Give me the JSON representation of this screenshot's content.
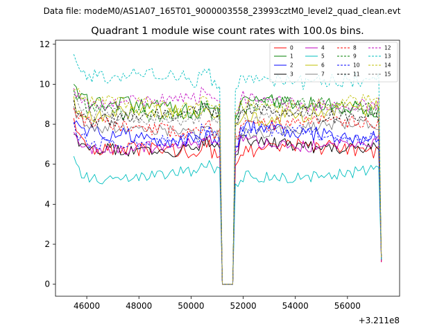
{
  "chart_data": {
    "type": "line",
    "suptitle": "Data file: modeM0/AS1A07_165T01_9000003558_23993cztM0_level2_quad_clean.evt",
    "title": "Quadrant 1 module wise count rates with 100.0s bins.",
    "xlabel": "",
    "ylabel": "",
    "x_offset_label": "+3.211e8",
    "xlim": [
      44800,
      58000
    ],
    "ylim": [
      -0.6,
      12.2
    ],
    "x_ticks": [
      46000,
      48000,
      50000,
      52000,
      54000,
      56000
    ],
    "x_tick_labels": [
      "46000",
      "48000",
      "50000",
      "52000",
      "54000",
      "56000"
    ],
    "y_ticks": [
      0,
      2,
      4,
      6,
      8,
      10,
      12
    ],
    "y_tick_labels": [
      "0",
      "2",
      "4",
      "6",
      "8",
      "10",
      "12"
    ],
    "grid": false,
    "legend_position": "upper right",
    "segments": [
      {
        "x_start": 45500,
        "x_end": 51100
      },
      {
        "x_start": 51200,
        "x_end": 51600
      },
      {
        "x_start": 51700,
        "x_end": 57300
      }
    ],
    "gap": {
      "x_start": 51200,
      "x_end": 51600,
      "value": 0.0
    },
    "end_value": 1.3,
    "series": [
      {
        "name": "0",
        "color": "#ff0000",
        "dashed": false,
        "start": 8.3,
        "level": 6.5,
        "amp": 0.4
      },
      {
        "name": "1",
        "color": "#008000",
        "dashed": false,
        "start": 10.0,
        "level": 8.8,
        "amp": 0.4
      },
      {
        "name": "2",
        "color": "#0000ff",
        "dashed": false,
        "start": 8.0,
        "level": 7.4,
        "amp": 0.4
      },
      {
        "name": "3",
        "color": "#000000",
        "dashed": false,
        "start": 7.5,
        "level": 6.9,
        "amp": 0.3
      },
      {
        "name": "4",
        "color": "#bf00bf",
        "dashed": false,
        "start": 7.6,
        "level": 7.0,
        "amp": 0.3
      },
      {
        "name": "5",
        "color": "#00bfbf",
        "dashed": false,
        "start": 6.4,
        "level": 5.4,
        "amp": 0.3
      },
      {
        "name": "6",
        "color": "#bfbf00",
        "dashed": false,
        "start": 9.4,
        "level": 8.4,
        "amp": 0.4
      },
      {
        "name": "7",
        "color": "#808080",
        "dashed": false,
        "start": 8.9,
        "level": 7.6,
        "amp": 0.3
      },
      {
        "name": "8",
        "color": "#ff0000",
        "dashed": true,
        "start": 8.8,
        "level": 7.8,
        "amp": 0.35
      },
      {
        "name": "9",
        "color": "#008000",
        "dashed": true,
        "start": 9.7,
        "level": 8.7,
        "amp": 0.35
      },
      {
        "name": "10",
        "color": "#0000ff",
        "dashed": true,
        "start": 8.1,
        "level": 7.3,
        "amp": 0.35
      },
      {
        "name": "11",
        "color": "#000000",
        "dashed": true,
        "start": 9.2,
        "level": 8.4,
        "amp": 0.35
      },
      {
        "name": "12",
        "color": "#bf00bf",
        "dashed": true,
        "start": 9.8,
        "level": 9.0,
        "amp": 0.35
      },
      {
        "name": "13",
        "color": "#00bfbf",
        "dashed": true,
        "start": 11.5,
        "level": 10.2,
        "amp": 0.4
      },
      {
        "name": "14",
        "color": "#bfbf00",
        "dashed": true,
        "start": 9.7,
        "level": 9.0,
        "amp": 0.35
      },
      {
        "name": "15",
        "color": "#808080",
        "dashed": true,
        "start": 9.5,
        "level": 8.5,
        "amp": 0.35
      }
    ]
  }
}
